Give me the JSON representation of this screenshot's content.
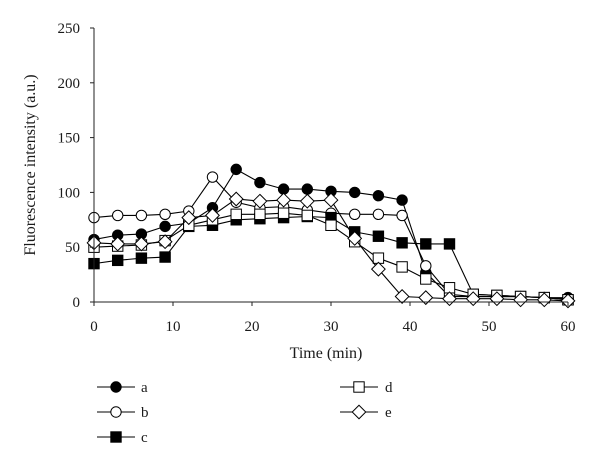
{
  "chart_data": {
    "type": "line",
    "xlabel": "Time (min)",
    "ylabel": "Fluorescence intensity (a.u.)",
    "xlim": [
      0,
      60
    ],
    "ylim": [
      0,
      250
    ],
    "x_ticks": [
      0,
      10,
      20,
      30,
      40,
      50,
      60
    ],
    "y_ticks": [
      0,
      50,
      100,
      150,
      200,
      250
    ],
    "grid": false,
    "legend_placement": "bottom",
    "series": [
      {
        "name": "a",
        "marker": "circle-filled",
        "x": [
          0,
          3,
          6,
          9,
          12,
          15,
          18,
          21,
          24,
          27,
          30,
          33,
          36,
          39,
          42,
          45,
          48,
          51,
          54,
          57,
          60
        ],
        "y": [
          57,
          61,
          62,
          69,
          72,
          86,
          121,
          109,
          103,
          103,
          101,
          100,
          97,
          93,
          27,
          5,
          5,
          5,
          5,
          4,
          4
        ]
      },
      {
        "name": "b",
        "marker": "circle-open",
        "x": [
          0,
          3,
          6,
          9,
          12,
          15,
          18,
          21,
          24,
          27,
          30,
          33,
          36,
          39,
          42,
          45,
          48,
          51,
          54,
          57,
          60
        ],
        "y": [
          77,
          79,
          79,
          80,
          83,
          114,
          91,
          86,
          87,
          84,
          81,
          80,
          80,
          79,
          33,
          7,
          5,
          5,
          5,
          4,
          3
        ]
      },
      {
        "name": "c",
        "marker": "square-filled",
        "x": [
          0,
          3,
          6,
          9,
          12,
          15,
          18,
          21,
          24,
          27,
          30,
          33,
          36,
          39,
          42,
          45,
          48,
          51,
          54,
          57,
          60
        ],
        "y": [
          35,
          38,
          40,
          41,
          69,
          70,
          75,
          76,
          77,
          78,
          77,
          64,
          60,
          54,
          53,
          53,
          7,
          6,
          5,
          4,
          2
        ]
      },
      {
        "name": "d",
        "marker": "square-open",
        "x": [
          0,
          3,
          6,
          9,
          12,
          15,
          18,
          21,
          24,
          27,
          30,
          33,
          36,
          39,
          42,
          45,
          48,
          51,
          54,
          57,
          60
        ],
        "y": [
          50,
          51,
          52,
          56,
          70,
          75,
          80,
          80,
          81,
          79,
          70,
          55,
          40,
          32,
          21,
          13,
          7,
          6,
          5,
          4,
          2
        ]
      },
      {
        "name": "e",
        "marker": "diamond-open",
        "x": [
          0,
          3,
          6,
          9,
          12,
          15,
          18,
          21,
          24,
          27,
          30,
          33,
          36,
          39,
          42,
          45,
          48,
          51,
          54,
          57,
          60
        ],
        "y": [
          54,
          53,
          53,
          55,
          77,
          79,
          94,
          92,
          93,
          92,
          93,
          58,
          30,
          5,
          4,
          3,
          3,
          3,
          2,
          2,
          1
        ]
      }
    ]
  }
}
